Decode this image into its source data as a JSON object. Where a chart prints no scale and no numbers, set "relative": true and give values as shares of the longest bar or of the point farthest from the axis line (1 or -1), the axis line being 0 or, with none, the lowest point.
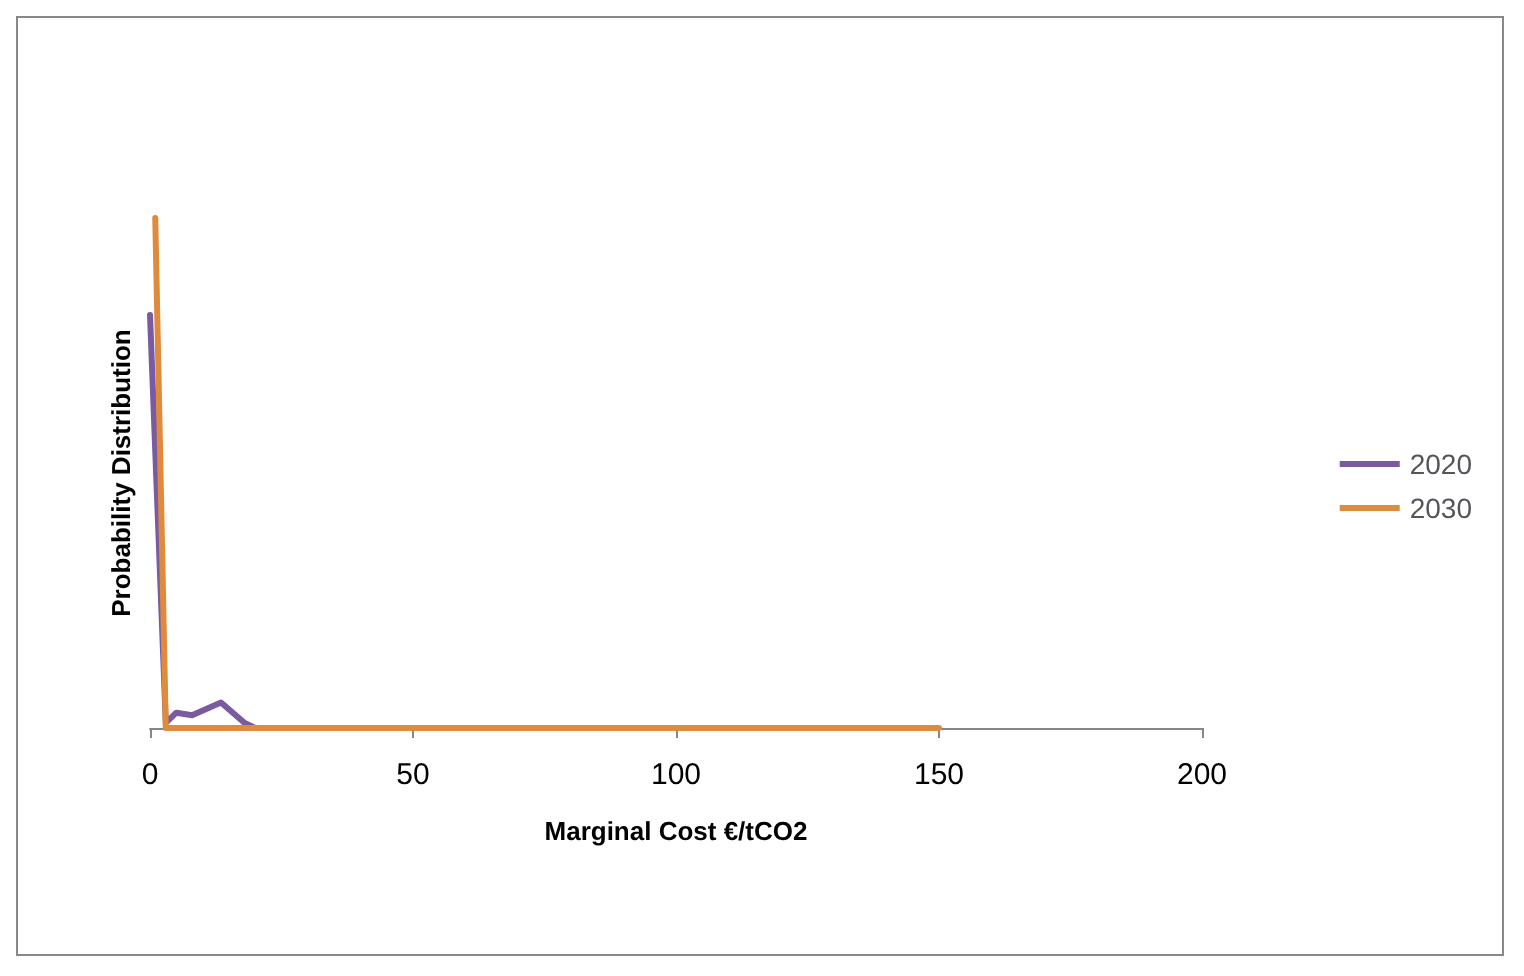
{
  "chart_data": {
    "type": "line",
    "relative": true,
    "xlabel": "Marginal Cost €/tCO2",
    "ylabel": "Probability Distribution",
    "xlim": [
      0,
      200
    ],
    "xticks": [
      0,
      50,
      100,
      150,
      200
    ],
    "legend": "right",
    "grid": false,
    "marker": "none",
    "series": [
      {
        "name": "2020",
        "color": "#7a5ba0",
        "x": [
          0,
          3,
          5,
          8,
          13.5,
          18,
          20
        ],
        "values": [
          0.81,
          0.01,
          0.03,
          0.025,
          0.05,
          0.01,
          0
        ]
      },
      {
        "name": "2030",
        "color": "#e08a3c",
        "x": [
          1,
          3,
          20,
          50,
          100,
          150
        ],
        "values": [
          1,
          0,
          0,
          0,
          0,
          0
        ]
      }
    ]
  }
}
